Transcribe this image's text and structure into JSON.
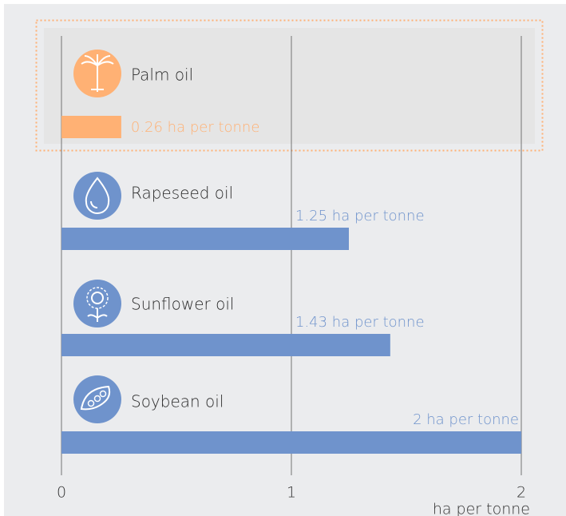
{
  "chart_data": {
    "type": "bar",
    "orientation": "horizontal",
    "categories": [
      "Palm oil",
      "Rapeseed oil",
      "Sunflower oil",
      "Soybean oil"
    ],
    "values": [
      0.26,
      1.25,
      1.43,
      2
    ],
    "value_labels": [
      "0.26 ha per tonne",
      "1.25 ha per tonne",
      "1.43 ha per tonne",
      "2 ha per tonne"
    ],
    "colors": [
      "#ffb174",
      "#6f93cc",
      "#6f93cc",
      "#6f93cc"
    ],
    "xlim": [
      0,
      2
    ],
    "xticks": [
      0,
      1,
      2
    ],
    "grid": true,
    "xlabel": "ha per tonne"
  }
}
